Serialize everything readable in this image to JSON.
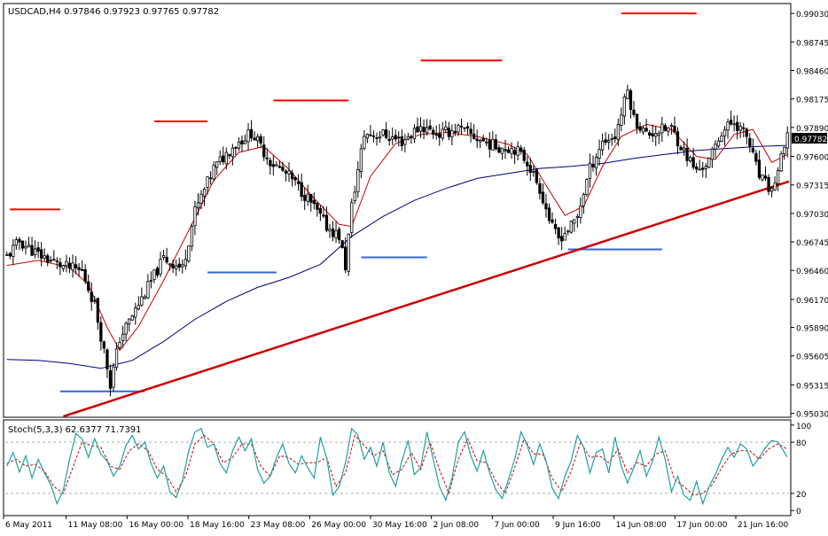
{
  "chart_data": [
    {
      "type": "candlestick",
      "symbol_header": "USDCAD,H4  0.97846 0.97923 0.97765 0.97782",
      "ylim": [
        0.95,
        0.9912
      ],
      "y_ticks": [
        "0.99030",
        "0.98745",
        "0.98460",
        "0.98175",
        "0.97890",
        "0.97600",
        "0.97315",
        "0.97030",
        "0.96745",
        "0.96460",
        "0.96170",
        "0.95890",
        "0.95605",
        "0.95315",
        "0.95030"
      ],
      "current_price": "0.97782",
      "x_ticks": [
        "6 May 2011",
        "11 May 08:00",
        "16 May 00:00",
        "18 May 16:00",
        "23 May 08:00",
        "26 May 00:00",
        "30 May 16:00",
        "2 Jun 08:00",
        "7 Jun 00:00",
        "9 Jun 16:00",
        "14 Jun 08:00",
        "17 Jun 00:00",
        "21 Jun 16:00"
      ],
      "bars": 250,
      "close_path": [
        [
          0,
          0.966
        ],
        [
          4,
          0.9675
        ],
        [
          10,
          0.9662
        ],
        [
          18,
          0.965
        ],
        [
          24,
          0.9645
        ],
        [
          28,
          0.9612
        ],
        [
          32,
          0.955
        ],
        [
          33,
          0.9532
        ],
        [
          36,
          0.9578
        ],
        [
          42,
          0.9612
        ],
        [
          50,
          0.9658
        ],
        [
          56,
          0.9648
        ],
        [
          60,
          0.9705
        ],
        [
          66,
          0.9748
        ],
        [
          72,
          0.977
        ],
        [
          78,
          0.9784
        ],
        [
          84,
          0.9755
        ],
        [
          90,
          0.974
        ],
        [
          96,
          0.9718
        ],
        [
          102,
          0.969
        ],
        [
          106,
          0.968
        ],
        [
          108,
          0.965
        ],
        [
          110,
          0.971
        ],
        [
          114,
          0.9782
        ],
        [
          120,
          0.9782
        ],
        [
          126,
          0.9775
        ],
        [
          132,
          0.979
        ],
        [
          138,
          0.9782
        ],
        [
          144,
          0.9788
        ],
        [
          150,
          0.9778
        ],
        [
          156,
          0.977
        ],
        [
          162,
          0.9768
        ],
        [
          166,
          0.9755
        ],
        [
          170,
          0.9728
        ],
        [
          174,
          0.9688
        ],
        [
          176,
          0.9678
        ],
        [
          180,
          0.969
        ],
        [
          182,
          0.97
        ],
        [
          186,
          0.9748
        ],
        [
          190,
          0.9775
        ],
        [
          194,
          0.978
        ],
        [
          198,
          0.9826
        ],
        [
          200,
          0.9798
        ],
        [
          204,
          0.9782
        ],
        [
          208,
          0.9786
        ],
        [
          212,
          0.9788
        ],
        [
          216,
          0.9765
        ],
        [
          220,
          0.9745
        ],
        [
          224,
          0.9755
        ],
        [
          228,
          0.9785
        ],
        [
          232,
          0.9795
        ],
        [
          236,
          0.978
        ],
        [
          240,
          0.974
        ],
        [
          244,
          0.9725
        ],
        [
          249,
          0.9778
        ]
      ],
      "moving_average_fast_path": [
        [
          0,
          0.9651
        ],
        [
          10,
          0.9656
        ],
        [
          20,
          0.9649
        ],
        [
          26,
          0.9632
        ],
        [
          32,
          0.9589
        ],
        [
          36,
          0.9566
        ],
        [
          42,
          0.959
        ],
        [
          50,
          0.9636
        ],
        [
          58,
          0.9686
        ],
        [
          66,
          0.9736
        ],
        [
          74,
          0.9764
        ],
        [
          82,
          0.977
        ],
        [
          90,
          0.9747
        ],
        [
          98,
          0.9718
        ],
        [
          106,
          0.9692
        ],
        [
          110,
          0.969
        ],
        [
          116,
          0.974
        ],
        [
          124,
          0.9773
        ],
        [
          132,
          0.9782
        ],
        [
          140,
          0.9784
        ],
        [
          150,
          0.978
        ],
        [
          160,
          0.9772
        ],
        [
          166,
          0.9762
        ],
        [
          172,
          0.9731
        ],
        [
          178,
          0.9701
        ],
        [
          184,
          0.971
        ],
        [
          190,
          0.975
        ],
        [
          196,
          0.978
        ],
        [
          204,
          0.9792
        ],
        [
          212,
          0.9787
        ],
        [
          220,
          0.976
        ],
        [
          226,
          0.9757
        ],
        [
          232,
          0.9782
        ],
        [
          238,
          0.9787
        ],
        [
          244,
          0.9754
        ],
        [
          249,
          0.9762
        ]
      ],
      "moving_average_slow_path": [
        [
          0,
          0.9557
        ],
        [
          10,
          0.9556
        ],
        [
          20,
          0.9553
        ],
        [
          30,
          0.9548
        ],
        [
          40,
          0.9556
        ],
        [
          50,
          0.9575
        ],
        [
          60,
          0.9597
        ],
        [
          70,
          0.9615
        ],
        [
          80,
          0.9629
        ],
        [
          90,
          0.9639
        ],
        [
          100,
          0.9652
        ],
        [
          110,
          0.968
        ],
        [
          120,
          0.97
        ],
        [
          130,
          0.9716
        ],
        [
          140,
          0.9728
        ],
        [
          150,
          0.9738
        ],
        [
          160,
          0.9743
        ],
        [
          170,
          0.9748
        ],
        [
          180,
          0.975
        ],
        [
          190,
          0.9753
        ],
        [
          200,
          0.9758
        ],
        [
          210,
          0.9762
        ],
        [
          220,
          0.9766
        ],
        [
          230,
          0.9768
        ],
        [
          240,
          0.977
        ],
        [
          249,
          0.9771
        ]
      ],
      "trendline": [
        [
          18,
          0.95
        ],
        [
          249,
          0.9735
        ]
      ],
      "resistance_levels": [
        [
          1,
          17,
          0.9707
        ],
        [
          47,
          64,
          0.9795
        ],
        [
          85,
          109,
          0.9816
        ],
        [
          132,
          158,
          0.9856
        ],
        [
          196,
          220,
          0.9903
        ]
      ],
      "support_levels": [
        [
          17,
          44,
          0.9525
        ],
        [
          64,
          86,
          0.9644
        ],
        [
          113,
          134,
          0.9659
        ],
        [
          179,
          209,
          0.9667
        ]
      ],
      "colors": {
        "candles": "#000000",
        "moving_average_fast": "#cc0000",
        "moving_average_slow": "#000080",
        "trendline": "#cc0000",
        "resistance": "#ff0000",
        "support": "#3366dd",
        "price_marker_bg": "#000000",
        "price_marker_text": "#ffffff"
      }
    },
    {
      "type": "line",
      "header": "Stoch(5,3,3) 62.6377 71.7391",
      "ylim": [
        -5,
        105
      ],
      "y_ticks": [
        "100",
        "80",
        "20",
        "0"
      ],
      "reference_levels": [
        80,
        20
      ],
      "main_path": [
        [
          0,
          52
        ],
        [
          2,
          68
        ],
        [
          4,
          45
        ],
        [
          6,
          64
        ],
        [
          8,
          38
        ],
        [
          10,
          60
        ],
        [
          12,
          44
        ],
        [
          14,
          30
        ],
        [
          16,
          8
        ],
        [
          18,
          24
        ],
        [
          20,
          60
        ],
        [
          22,
          90
        ],
        [
          24,
          84
        ],
        [
          26,
          62
        ],
        [
          28,
          84
        ],
        [
          30,
          66
        ],
        [
          32,
          58
        ],
        [
          34,
          40
        ],
        [
          36,
          52
        ],
        [
          38,
          76
        ],
        [
          40,
          88
        ],
        [
          42,
          72
        ],
        [
          44,
          80
        ],
        [
          46,
          55
        ],
        [
          48,
          38
        ],
        [
          50,
          52
        ],
        [
          52,
          22
        ],
        [
          54,
          15
        ],
        [
          56,
          35
        ],
        [
          58,
          70
        ],
        [
          60,
          92
        ],
        [
          62,
          96
        ],
        [
          64,
          74
        ],
        [
          66,
          78
        ],
        [
          68,
          55
        ],
        [
          70,
          44
        ],
        [
          72,
          70
        ],
        [
          74,
          86
        ],
        [
          76,
          70
        ],
        [
          78,
          84
        ],
        [
          80,
          48
        ],
        [
          82,
          32
        ],
        [
          84,
          40
        ],
        [
          86,
          62
        ],
        [
          88,
          78
        ],
        [
          90,
          55
        ],
        [
          92,
          44
        ],
        [
          94,
          64
        ],
        [
          96,
          50
        ],
        [
          98,
          38
        ],
        [
          100,
          86
        ],
        [
          102,
          62
        ],
        [
          104,
          18
        ],
        [
          106,
          28
        ],
        [
          108,
          56
        ],
        [
          110,
          96
        ],
        [
          112,
          88
        ],
        [
          114,
          60
        ],
        [
          116,
          74
        ],
        [
          118,
          52
        ],
        [
          120,
          80
        ],
        [
          122,
          44
        ],
        [
          124,
          28
        ],
        [
          126,
          58
        ],
        [
          128,
          82
        ],
        [
          130,
          42
        ],
        [
          132,
          50
        ],
        [
          134,
          92
        ],
        [
          136,
          60
        ],
        [
          138,
          28
        ],
        [
          140,
          12
        ],
        [
          142,
          38
        ],
        [
          144,
          80
        ],
        [
          146,
          92
        ],
        [
          148,
          64
        ],
        [
          150,
          46
        ],
        [
          152,
          70
        ],
        [
          154,
          44
        ],
        [
          156,
          24
        ],
        [
          158,
          14
        ],
        [
          160,
          36
        ],
        [
          162,
          60
        ],
        [
          164,
          92
        ],
        [
          166,
          76
        ],
        [
          168,
          54
        ],
        [
          170,
          78
        ],
        [
          172,
          58
        ],
        [
          174,
          26
        ],
        [
          176,
          14
        ],
        [
          178,
          40
        ],
        [
          180,
          58
        ],
        [
          182,
          88
        ],
        [
          184,
          74
        ],
        [
          186,
          44
        ],
        [
          188,
          68
        ],
        [
          190,
          72
        ],
        [
          192,
          44
        ],
        [
          194,
          86
        ],
        [
          196,
          52
        ],
        [
          198,
          32
        ],
        [
          200,
          50
        ],
        [
          202,
          70
        ],
        [
          204,
          40
        ],
        [
          206,
          58
        ],
        [
          208,
          86
        ],
        [
          210,
          60
        ],
        [
          212,
          22
        ],
        [
          214,
          40
        ],
        [
          216,
          18
        ],
        [
          218,
          12
        ],
        [
          220,
          34
        ],
        [
          222,
          8
        ],
        [
          224,
          28
        ],
        [
          226,
          42
        ],
        [
          228,
          60
        ],
        [
          230,
          74
        ],
        [
          232,
          62
        ],
        [
          234,
          78
        ],
        [
          236,
          72
        ],
        [
          238,
          52
        ],
        [
          240,
          62
        ],
        [
          242,
          74
        ],
        [
          244,
          82
        ],
        [
          246,
          80
        ],
        [
          249,
          62.6377
        ]
      ],
      "signal_path": [
        [
          0,
          55
        ],
        [
          3,
          60
        ],
        [
          6,
          52
        ],
        [
          9,
          54
        ],
        [
          12,
          46
        ],
        [
          15,
          28
        ],
        [
          18,
          20
        ],
        [
          21,
          50
        ],
        [
          24,
          80
        ],
        [
          27,
          76
        ],
        [
          30,
          74
        ],
        [
          33,
          52
        ],
        [
          36,
          48
        ],
        [
          39,
          70
        ],
        [
          42,
          78
        ],
        [
          45,
          70
        ],
        [
          48,
          48
        ],
        [
          51,
          40
        ],
        [
          54,
          22
        ],
        [
          57,
          40
        ],
        [
          60,
          78
        ],
        [
          63,
          88
        ],
        [
          66,
          78
        ],
        [
          69,
          56
        ],
        [
          72,
          62
        ],
        [
          75,
          78
        ],
        [
          78,
          78
        ],
        [
          81,
          52
        ],
        [
          84,
          40
        ],
        [
          87,
          64
        ],
        [
          90,
          62
        ],
        [
          93,
          54
        ],
        [
          96,
          56
        ],
        [
          99,
          56
        ],
        [
          102,
          62
        ],
        [
          105,
          28
        ],
        [
          108,
          44
        ],
        [
          111,
          88
        ],
        [
          114,
          76
        ],
        [
          117,
          64
        ],
        [
          120,
          70
        ],
        [
          123,
          42
        ],
        [
          126,
          48
        ],
        [
          129,
          68
        ],
        [
          132,
          48
        ],
        [
          135,
          80
        ],
        [
          138,
          48
        ],
        [
          141,
          20
        ],
        [
          144,
          60
        ],
        [
          147,
          84
        ],
        [
          150,
          58
        ],
        [
          153,
          56
        ],
        [
          156,
          34
        ],
        [
          159,
          20
        ],
        [
          162,
          50
        ],
        [
          165,
          84
        ],
        [
          168,
          66
        ],
        [
          171,
          66
        ],
        [
          174,
          38
        ],
        [
          177,
          22
        ],
        [
          180,
          46
        ],
        [
          183,
          80
        ],
        [
          186,
          62
        ],
        [
          189,
          64
        ],
        [
          192,
          56
        ],
        [
          195,
          72
        ],
        [
          198,
          44
        ],
        [
          201,
          56
        ],
        [
          204,
          52
        ],
        [
          207,
          66
        ],
        [
          210,
          70
        ],
        [
          213,
          36
        ],
        [
          216,
          28
        ],
        [
          219,
          18
        ],
        [
          222,
          20
        ],
        [
          225,
          30
        ],
        [
          228,
          50
        ],
        [
          231,
          66
        ],
        [
          234,
          70
        ],
        [
          237,
          70
        ],
        [
          240,
          60
        ],
        [
          243,
          72
        ],
        [
          246,
          78
        ],
        [
          249,
          71.7391
        ]
      ],
      "colors": {
        "main": "#20a0a0",
        "signal": "#cc0000",
        "reference": "#b0b0b0"
      }
    }
  ]
}
